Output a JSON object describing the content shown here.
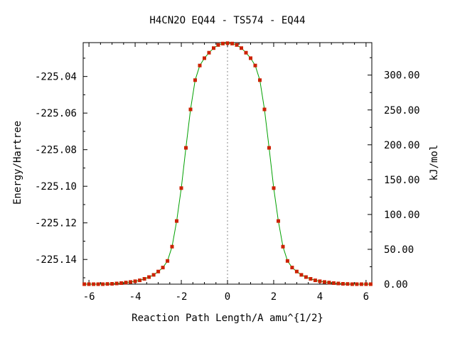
{
  "chart_data": {
    "type": "line",
    "title": "H4CN2O   EQ44 - TS574 - EQ44",
    "xlabel": "Reaction Path Length/A amu^{1/2}",
    "ylabel": "Energy/Hartree",
    "y2label": "kJ/mol",
    "xlim": [
      -6.25,
      6.25
    ],
    "ylim": [
      -225.1535,
      -225.0215
    ],
    "y2lim": [
      0.0,
      346.6
    ],
    "x_ticks": [
      -6,
      -4,
      -2,
      0,
      2,
      4,
      6
    ],
    "x_tick_labels": [
      "-6",
      "-4",
      "-2",
      "0",
      "2",
      "4",
      "6"
    ],
    "y_ticks": [
      -225.04,
      -225.06,
      -225.08,
      -225.1,
      -225.12,
      -225.14
    ],
    "y_tick_labels": [
      "-225.04",
      "-225.06",
      "-225.08",
      "-225.10",
      "-225.12",
      "-225.14"
    ],
    "y2_ticks": [
      300,
      250,
      200,
      150,
      100,
      50,
      0
    ],
    "y2_tick_labels": [
      "300.00",
      "250.00",
      "200.00",
      "150.00",
      "100.00",
      "50.00",
      "0.00"
    ],
    "grid": false,
    "ts_marker_x": 0,
    "line_color": "#00a000",
    "point_color": "#cc2200",
    "series": [
      {
        "x": [
          -6.2,
          -6.0,
          -5.8,
          -5.6,
          -5.4,
          -5.2,
          -5.0,
          -4.8,
          -4.6,
          -4.4,
          -4.2,
          -4.0,
          -3.8,
          -3.6,
          -3.4,
          -3.2,
          -3.0,
          -2.8,
          -2.6,
          -2.4,
          -2.2,
          -2.0,
          -1.8,
          -1.6,
          -1.4,
          -1.2,
          -1.0,
          -0.8,
          -0.6,
          -0.4,
          -0.2,
          0.0,
          0.2,
          0.4,
          0.6,
          0.8,
          1.0,
          1.2,
          1.4,
          1.6,
          1.8,
          2.0,
          2.2,
          2.4,
          2.6,
          2.8,
          3.0,
          3.2,
          3.4,
          3.6,
          3.8,
          4.0,
          4.2,
          4.4,
          4.6,
          4.8,
          5.0,
          5.2,
          5.4,
          5.6,
          5.8,
          6.0,
          6.2
        ],
        "y": [
          -225.1535,
          -225.1535,
          -225.1535,
          -225.1535,
          -225.1535,
          -225.1534,
          -225.1533,
          -225.1531,
          -225.1529,
          -225.1526,
          -225.1523,
          -225.1519,
          -225.1514,
          -225.1506,
          -225.1496,
          -225.1484,
          -225.1466,
          -225.1444,
          -225.1408,
          -225.133,
          -225.119,
          -225.101,
          -225.079,
          -225.058,
          -225.042,
          -225.034,
          -225.03,
          -225.027,
          -225.0245,
          -225.0228,
          -225.022,
          -225.0218,
          -225.022,
          -225.0228,
          -225.0245,
          -225.027,
          -225.03,
          -225.034,
          -225.042,
          -225.058,
          -225.079,
          -225.101,
          -225.119,
          -225.133,
          -225.1408,
          -225.1444,
          -225.1466,
          -225.1484,
          -225.1496,
          -225.1506,
          -225.1514,
          -225.1519,
          -225.1523,
          -225.1526,
          -225.1529,
          -225.1531,
          -225.1533,
          -225.1534,
          -225.1535,
          -225.1535,
          -225.1535,
          -225.1535,
          -225.1535
        ]
      }
    ]
  }
}
